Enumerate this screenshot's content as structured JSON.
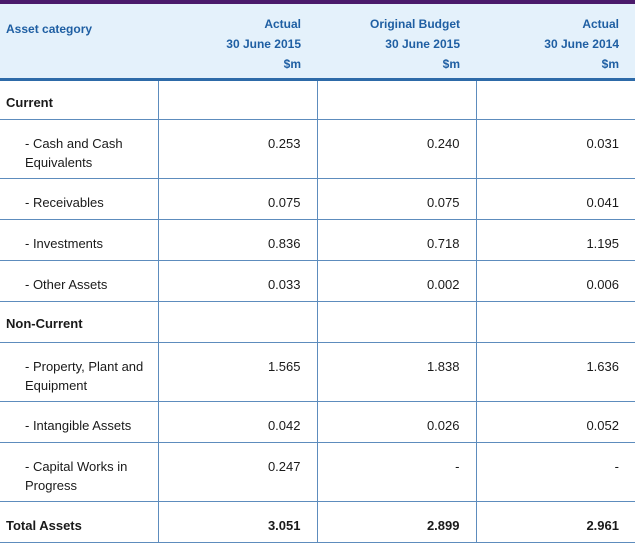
{
  "header": {
    "category_label": "Asset category",
    "columns": [
      {
        "line1": "Actual",
        "line2": "30 June 2015",
        "line3": "$m"
      },
      {
        "line1": "Original Budget",
        "line2": "30 June 2015",
        "line3": "$m"
      },
      {
        "line1": "Actual",
        "line2": "30 June 2014",
        "line3": "$m"
      }
    ]
  },
  "rows": {
    "current": {
      "label": "Current"
    },
    "cash": {
      "label": "- Cash and Cash Equivalents",
      "v1": "0.253",
      "v2": "0.240",
      "v3": "0.031"
    },
    "receivables": {
      "label": "- Receivables",
      "v1": "0.075",
      "v2": "0.075",
      "v3": "0.041"
    },
    "investments": {
      "label": "- Investments",
      "v1": "0.836",
      "v2": "0.718",
      "v3": "1.195"
    },
    "other_assets": {
      "label": "- Other Assets",
      "v1": "0.033",
      "v2": "0.002",
      "v3": "0.006"
    },
    "non_current": {
      "label": "Non-Current"
    },
    "ppe": {
      "label": "- Property, Plant and Equipment",
      "v1": "1.565",
      "v2": "1.838",
      "v3": "1.636"
    },
    "intangible": {
      "label": "- Intangible Assets",
      "v1": "0.042",
      "v2": "0.026",
      "v3": "0.052"
    },
    "cwip": {
      "label": "- Capital Works in Progress",
      "v1": "0.247",
      "v2": "-",
      "v3": "-"
    },
    "total": {
      "label": "Total Assets",
      "v1": "3.051",
      "v2": "2.899",
      "v3": "2.961"
    }
  }
}
